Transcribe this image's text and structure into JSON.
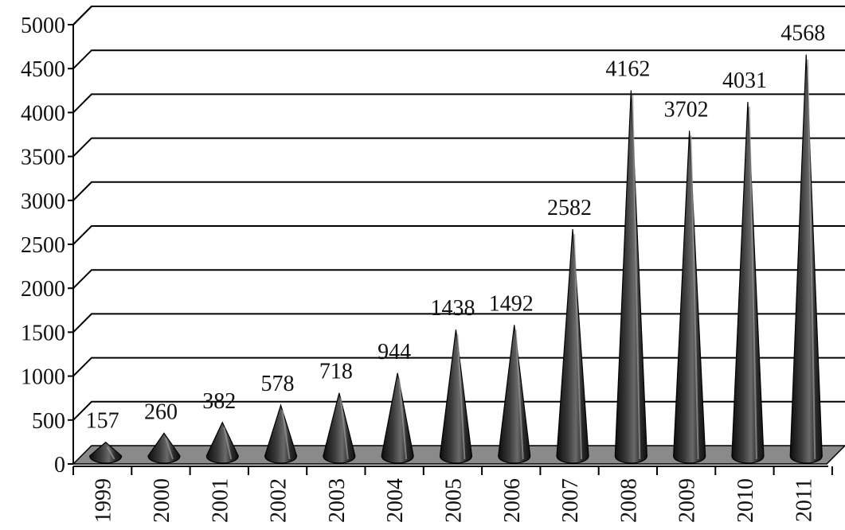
{
  "chart_data": {
    "type": "bar",
    "bar_shape": "cone",
    "categories": [
      "1999",
      "2000",
      "2001",
      "2002",
      "2003",
      "2004",
      "2005",
      "2006",
      "2007",
      "2008",
      "2009",
      "2010",
      "2011"
    ],
    "values": [
      157,
      260,
      382,
      578,
      718,
      944,
      1438,
      1492,
      2582,
      4162,
      3702,
      4031,
      4568
    ],
    "data_labels": [
      "157",
      "260",
      "382",
      "578",
      "718",
      "944",
      "1438",
      "1492",
      "2582",
      "4162",
      "3702",
      "4031",
      "4568"
    ],
    "y_ticks": [
      "0",
      "500",
      "1000",
      "1500",
      "2000",
      "2500",
      "3000",
      "3500",
      "4000",
      "4500",
      "5000"
    ],
    "ylim": [
      0,
      5000
    ],
    "title": "",
    "xlabel": "",
    "ylabel": "",
    "grid": true,
    "legend": "none",
    "colors": {
      "cone": "#2a2a2a",
      "floor": "#8a8a8a",
      "grid": "#000000"
    }
  }
}
